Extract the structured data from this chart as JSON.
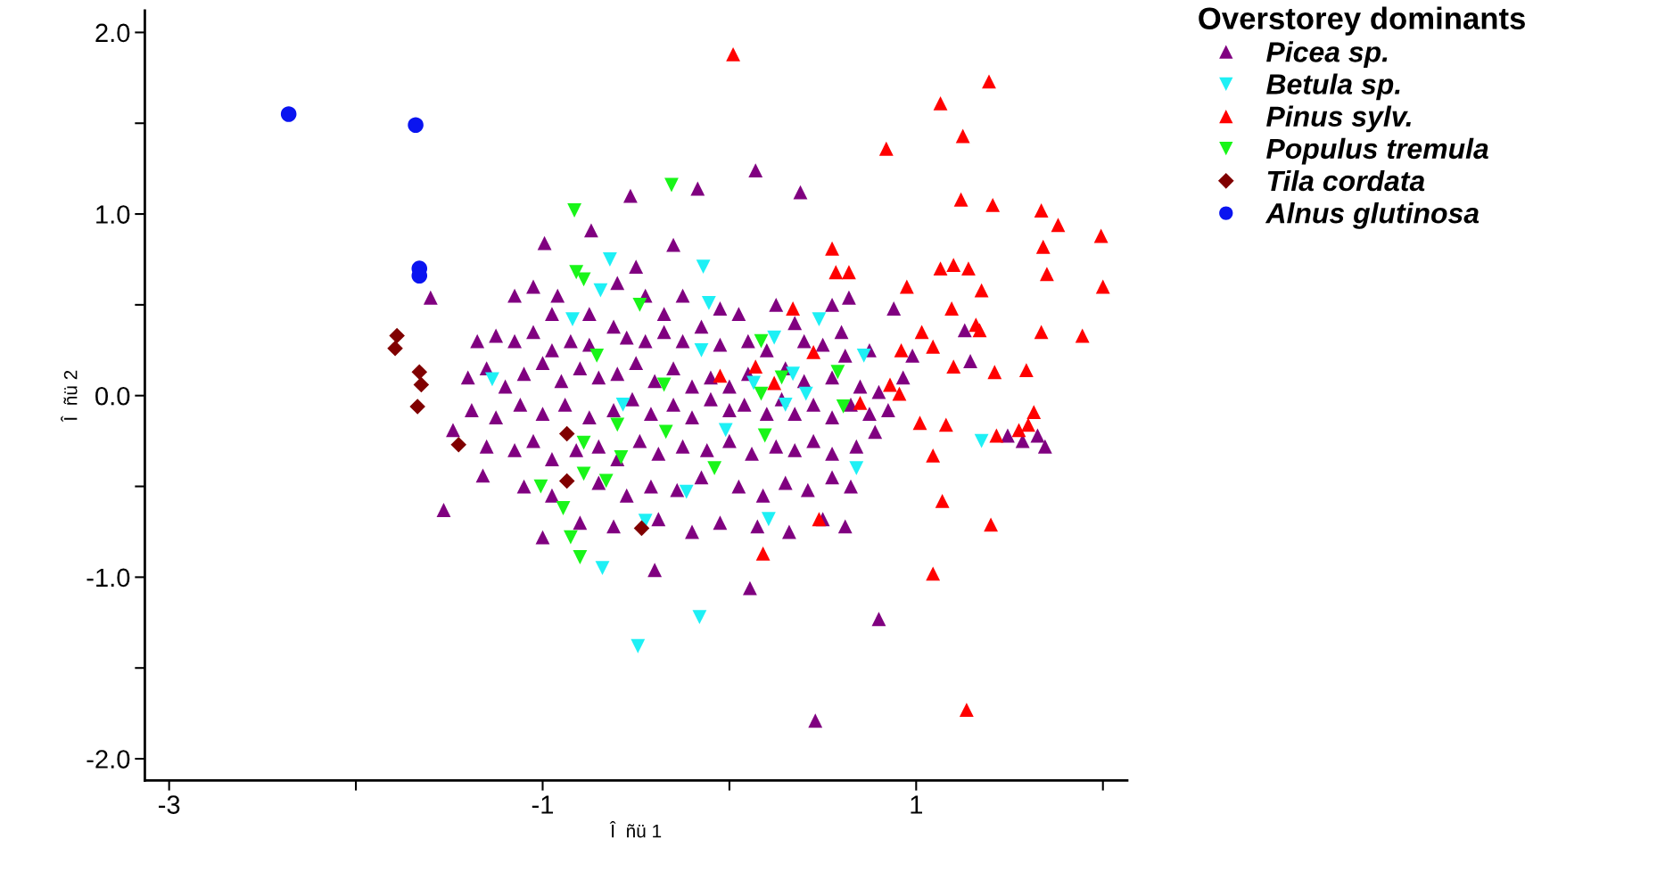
{
  "chart_data": {
    "type": "scatter",
    "xlabel": "Î  ñü 1",
    "ylabel": "Î  ñü 2",
    "legend_title": "Overstorey dominants",
    "legend": "top right",
    "grid": false,
    "xlim": [
      -3.13,
      2.13
    ],
    "xticks": [
      -3,
      {
        "value": -2,
        "label": null
      },
      -1,
      {
        "value": 0,
        "label": null
      },
      1,
      {
        "value": 2,
        "label": null
      }
    ],
    "ylim": [
      -2.12,
      2.12
    ],
    "yticks": [
      {
        "value": -2,
        "label": "-2.0"
      },
      {
        "value": -1.5,
        "label": null
      },
      {
        "value": -1,
        "label": "-1.0"
      },
      {
        "value": -0.5,
        "label": null
      },
      {
        "value": 0,
        "label": "0.0"
      },
      {
        "value": 0.5,
        "label": null
      },
      {
        "value": 1,
        "label": "1.0"
      },
      {
        "value": 1.5,
        "label": null
      },
      {
        "value": 2,
        "label": "2.0"
      }
    ],
    "series": [
      {
        "name": "Picea sp.",
        "color": "#800080",
        "marker": "triangle",
        "x": [
          -1.6,
          -1.53,
          -1.32,
          -1.48,
          -0.17,
          -0.53,
          0.14,
          0.38,
          -0.74,
          -0.99,
          -0.82,
          -0.5,
          -0.3,
          0.46,
          0.8,
          0.11,
          -0.4,
          0.88,
          0.64,
          1.26,
          1.29,
          1.49,
          1.57,
          1.65,
          1.69,
          0.98,
          0.93,
          -1.15,
          -1.05,
          -0.92,
          -0.6,
          -0.45,
          -0.35,
          -0.25,
          -0.05,
          0.05,
          0.25,
          0.35,
          0.55,
          0.6,
          -1.35,
          -1.25,
          -1.15,
          -1.05,
          -0.95,
          -0.85,
          -0.75,
          -0.62,
          -0.55,
          -0.45,
          -0.35,
          -0.25,
          -0.15,
          -0.05,
          0.1,
          0.2,
          0.4,
          0.5,
          0.62,
          0.75,
          -1.4,
          -1.3,
          -1.2,
          -1.1,
          -1.0,
          -0.9,
          -0.8,
          -0.7,
          -0.6,
          -0.5,
          -0.4,
          -0.3,
          -0.2,
          -0.1,
          0.0,
          0.1,
          0.3,
          0.4,
          0.55,
          0.7,
          0.8,
          -1.38,
          -1.25,
          -1.12,
          -1.0,
          -0.88,
          -0.75,
          -0.62,
          -0.52,
          -0.42,
          -0.3,
          -0.2,
          -0.1,
          0.0,
          0.08,
          0.2,
          0.28,
          0.35,
          0.45,
          0.55,
          0.65,
          0.75,
          0.85,
          -1.3,
          -1.15,
          -1.05,
          -0.95,
          -0.82,
          -0.7,
          -0.6,
          -0.48,
          -0.38,
          -0.25,
          -0.12,
          0.0,
          0.12,
          0.25,
          0.35,
          0.45,
          0.55,
          0.68,
          0.78,
          -1.1,
          -0.95,
          -0.7,
          -0.55,
          -0.42,
          -0.28,
          -0.15,
          0.05,
          0.18,
          0.3,
          0.42,
          0.55,
          0.65,
          -1.0,
          -0.8,
          -0.62,
          -0.38,
          -0.2,
          -0.05,
          0.15,
          0.32,
          0.5,
          0.62,
          -0.95,
          -0.75
        ],
        "values": [
          0.54,
          -0.63,
          -0.44,
          -0.19,
          1.14,
          1.1,
          1.24,
          1.12,
          0.91,
          0.84,
          null,
          0.71,
          0.83,
          -1.79,
          -1.23,
          -1.06,
          -0.96,
          0.48,
          0.54,
          0.36,
          0.19,
          -0.22,
          -0.25,
          -0.22,
          -0.28,
          0.22,
          0.1,
          0.55,
          0.6,
          0.55,
          0.62,
          0.55,
          0.45,
          0.55,
          0.48,
          0.45,
          0.5,
          0.4,
          0.5,
          0.35,
          0.3,
          0.33,
          0.3,
          0.35,
          0.25,
          0.3,
          0.28,
          0.38,
          0.32,
          0.3,
          0.35,
          0.3,
          0.38,
          0.28,
          0.3,
          0.25,
          0.3,
          0.28,
          0.22,
          0.25,
          0.1,
          0.15,
          0.05,
          0.12,
          0.18,
          0.08,
          0.15,
          0.1,
          0.12,
          0.18,
          0.08,
          0.15,
          0.05,
          0.1,
          0.05,
          0.12,
          0.15,
          0.08,
          0.1,
          0.05,
          0.02,
          -0.08,
          -0.12,
          -0.05,
          -0.1,
          -0.05,
          -0.12,
          -0.08,
          -0.02,
          -0.1,
          -0.05,
          -0.12,
          -0.02,
          -0.08,
          -0.05,
          -0.1,
          -0.02,
          -0.1,
          -0.05,
          -0.12,
          -0.05,
          -0.1,
          -0.08,
          -0.28,
          -0.3,
          -0.25,
          -0.35,
          -0.3,
          -0.28,
          -0.35,
          -0.25,
          -0.32,
          -0.28,
          -0.3,
          -0.25,
          -0.32,
          -0.28,
          -0.3,
          -0.25,
          -0.32,
          -0.28,
          -0.2,
          -0.5,
          -0.55,
          -0.48,
          -0.55,
          -0.5,
          -0.52,
          -0.45,
          -0.5,
          -0.55,
          -0.48,
          -0.52,
          -0.45,
          -0.5,
          -0.78,
          -0.7,
          -0.72,
          -0.68,
          -0.75,
          -0.7,
          -0.72,
          -0.75,
          -0.68,
          -0.72,
          0.45,
          0.45
        ]
      },
      {
        "name": "Betula sp.",
        "color": "#1ef0f5",
        "marker": "triangle_down",
        "x": [
          -1.27,
          -0.64,
          -0.69,
          -0.14,
          -0.11,
          -0.15,
          0.48,
          0.72,
          0.24,
          0.34,
          0.3,
          0.68,
          1.35,
          0.21,
          -0.68,
          -0.16,
          -0.49,
          -0.45,
          -0.23,
          -0.84,
          -0.57,
          -0.02,
          0.13,
          0.41
        ],
        "values": [
          0.09,
          0.75,
          0.58,
          0.71,
          0.51,
          0.25,
          0.42,
          0.22,
          0.32,
          0.12,
          -0.05,
          -0.4,
          -0.25,
          -0.68,
          -0.95,
          -1.22,
          -1.38,
          -0.69,
          -0.53,
          0.42,
          -0.05,
          -0.19,
          0.07,
          0.01
        ]
      },
      {
        "name": "Pinus sylv.",
        "color": "#ff0000",
        "marker": "triangle",
        "x": [
          0.02,
          1.39,
          1.13,
          1.25,
          0.84,
          1.24,
          1.41,
          1.67,
          1.76,
          1.99,
          1.68,
          0.55,
          0.57,
          0.64,
          1.13,
          1.2,
          1.28,
          0.95,
          1.35,
          2.0,
          1.7,
          1.19,
          1.32,
          1.34,
          1.67,
          1.89,
          0.34,
          1.03,
          1.09,
          0.92,
          0.45,
          1.2,
          1.42,
          1.59,
          0.91,
          1.02,
          1.16,
          1.43,
          1.55,
          1.6,
          1.63,
          -0.05,
          0.14,
          0.24,
          1.09,
          1.14,
          1.4,
          1.09,
          0.48,
          0.18,
          1.27,
          0.7,
          0.86
        ],
        "values": [
          1.88,
          1.73,
          1.61,
          1.43,
          1.36,
          1.08,
          1.05,
          1.02,
          0.94,
          0.88,
          0.82,
          0.81,
          0.68,
          0.68,
          0.7,
          0.72,
          0.7,
          0.6,
          0.58,
          0.6,
          0.67,
          0.48,
          0.39,
          0.36,
          0.35,
          0.33,
          0.48,
          0.35,
          0.27,
          0.25,
          0.24,
          0.16,
          0.13,
          0.14,
          0.01,
          -0.15,
          -0.16,
          -0.22,
          -0.19,
          -0.16,
          -0.09,
          0.11,
          0.16,
          0.07,
          -0.33,
          -0.58,
          -0.71,
          -0.98,
          -0.68,
          -0.87,
          -1.73,
          -0.04,
          0.06
        ]
      },
      {
        "name": "Populus tremula",
        "color": "#19f519",
        "marker": "triangle_down",
        "x": [
          -0.31,
          -0.83,
          -0.82,
          -0.78,
          -0.48,
          -0.71,
          0.17,
          0.58,
          0.17,
          0.19,
          0.61,
          -0.35,
          -0.34,
          -0.6,
          -0.58,
          -0.78,
          -0.78,
          -0.66,
          -1.01,
          -0.89,
          -0.85,
          -0.8,
          -0.08,
          0.28
        ],
        "values": [
          1.16,
          1.02,
          0.68,
          0.64,
          0.5,
          0.22,
          0.3,
          0.13,
          0.01,
          -0.22,
          -0.06,
          0.06,
          -0.2,
          -0.16,
          -0.34,
          -0.26,
          -0.43,
          -0.47,
          -0.5,
          -0.62,
          -0.78,
          -0.89,
          -0.4,
          0.1
        ]
      },
      {
        "name": "Tila cordata",
        "color": "#800000",
        "marker": "diamond",
        "x": [
          -1.78,
          -1.79,
          -1.66,
          -1.65,
          -1.67,
          -1.45,
          -0.87,
          -0.87,
          -0.47
        ],
        "values": [
          0.33,
          0.26,
          0.13,
          0.06,
          -0.06,
          -0.27,
          -0.21,
          -0.47,
          -0.73
        ]
      },
      {
        "name": "Alnus glutinosa",
        "color": "#0a14f0",
        "marker": "circle",
        "x": [
          -2.36,
          -1.68,
          -1.66,
          -1.66
        ],
        "values": [
          1.55,
          1.49,
          0.7,
          0.66
        ]
      }
    ]
  }
}
